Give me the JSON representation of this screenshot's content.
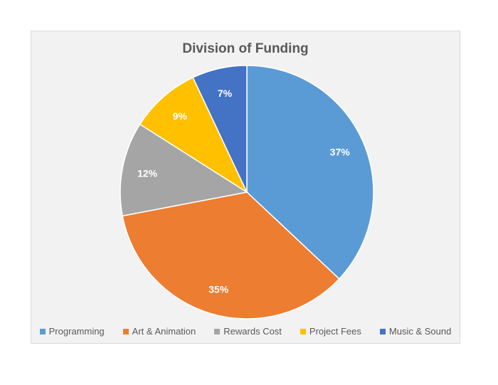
{
  "chart_data": {
    "type": "pie",
    "title": "Division of Funding",
    "categories": [
      "Programming",
      "Art & Animation",
      "Rewards Cost",
      "Project Fees",
      "Music & Sound"
    ],
    "values": [
      37,
      35,
      12,
      9,
      7
    ],
    "labels": [
      "37%",
      "35%",
      "12%",
      "9%",
      "7%"
    ],
    "colors": [
      "#5b9bd5",
      "#ed7d31",
      "#a5a5a5",
      "#ffc000",
      "#4472c4"
    ],
    "legend_position": "bottom",
    "start_angle": "12 o'clock",
    "direction": "clockwise"
  }
}
